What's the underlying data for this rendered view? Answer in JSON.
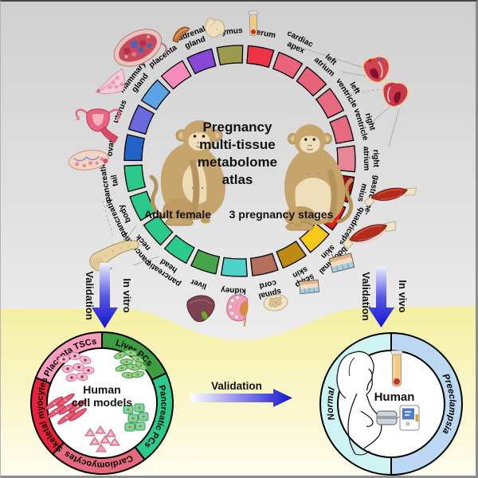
{
  "figure": {
    "atlas": {
      "title_lines": [
        "Pregnancy",
        "multi-tissue",
        "metabolome",
        "atlas"
      ],
      "left_caption": "Adult female",
      "right_caption": "3 pregnancy stages",
      "ring_segments": [
        {
          "label_lines": [
            "thymus"
          ],
          "color": "#9c9a4c",
          "icon": "thymus-icon"
        },
        {
          "label_lines": [
            "serum"
          ],
          "color": "#ee3347",
          "icon": "serum-tube-icon"
        },
        {
          "label_lines": [
            "cardiac",
            "apex"
          ],
          "color": "#e7647a",
          "icon": "heart-icon"
        },
        {
          "label_lines": [
            "left",
            "atrium"
          ],
          "color": "#e7647a",
          "icon": "heart-icon"
        },
        {
          "label_lines": [
            "left",
            "ventricle"
          ],
          "color": "#e76b80",
          "icon": "heart-icon"
        },
        {
          "label_lines": [
            "right",
            "ventricle"
          ],
          "color": "#e76b80",
          "icon": "heart-icon"
        },
        {
          "label_lines": [
            "right",
            "atrium"
          ],
          "color": "#e98598",
          "icon": "heart-icon"
        },
        {
          "label_lines": [
            "gastrocne-",
            "mius"
          ],
          "color": "#a30d12",
          "icon": "gastrocnemius-icon"
        },
        {
          "label_lines": [
            "quadriceps"
          ],
          "color": "#e51a1a",
          "icon": "quadriceps-icon"
        },
        {
          "label_lines": [
            "abdominal",
            "skin"
          ],
          "color": "#f6c81a",
          "icon": "abdominal-skin-icon"
        },
        {
          "label_lines": [
            "scalp",
            "skin"
          ],
          "color": "#bf8a10",
          "icon": "scalp-skin-icon"
        },
        {
          "label_lines": [
            "spinal",
            "cord"
          ],
          "color": "#b4705c",
          "icon": "spinal-cord-icon"
        },
        {
          "label_lines": [
            "kidney"
          ],
          "color": "#4fd2ca",
          "icon": "kidney-icon"
        },
        {
          "label_lines": [
            "liver"
          ],
          "color": "#48a448",
          "icon": "liver-icon"
        },
        {
          "label_lines": [
            "pancreatic",
            "head"
          ],
          "color": "#2bc98c",
          "icon": "pancreas-icon"
        },
        {
          "label_lines": [
            "pancreatic",
            "neck"
          ],
          "color": "#2bc98c",
          "icon": "pancreas-icon"
        },
        {
          "label_lines": [
            "pancreatic",
            "body"
          ],
          "color": "#2bc98c",
          "icon": "pancreas-icon"
        },
        {
          "label_lines": [
            "pancreatic",
            "tail"
          ],
          "color": "#2bc98c",
          "icon": "pancreas-icon"
        },
        {
          "label_lines": [
            "ovary"
          ],
          "color": "#2265c8",
          "icon": "ovary-icon"
        },
        {
          "label_lines": [
            "uterus"
          ],
          "color": "#6b6add",
          "icon": "uterus-icon"
        },
        {
          "label_lines": [
            "mammary",
            "gland"
          ],
          "color": "#5ba3e6",
          "icon": "mammary-gland-icon"
        },
        {
          "label_lines": [
            "placenta"
          ],
          "color": "#f78bbb",
          "icon": "placenta-icon"
        },
        {
          "label_lines": [
            "adrenal",
            "gland"
          ],
          "color": "#8a46d4",
          "icon": "adrenal-gland-icon"
        }
      ]
    },
    "invitro_arrow": {
      "validation_label": "Validation",
      "scope_label": "In vitro"
    },
    "invivo_arrow": {
      "validation_label": "Validation",
      "scope_label": "In vivo"
    },
    "center_arrow": {
      "label": "Validation"
    },
    "cell_models_circle": {
      "center_lines": [
        "Human",
        "cell models"
      ],
      "segments": [
        {
          "label": "Liver PCs",
          "color": "#3d9e41",
          "start": 0,
          "end": 65
        },
        {
          "label": "Pancreatic PCs",
          "color": "#2bc98c",
          "start": 65,
          "end": 143
        },
        {
          "label": "Cardiomyocytes",
          "color": "#e7697e",
          "start": 143,
          "end": 224
        },
        {
          "label": "Skeletal myocytes",
          "color": "#e82339",
          "start": 224,
          "end": 291
        },
        {
          "label": "Placenta TSCs",
          "color": "#fa9dbd",
          "start": 291,
          "end": 360
        }
      ]
    },
    "human_circle": {
      "center_label": "Human",
      "segments": [
        {
          "label": "Preeclampsia",
          "color": "#bdd8f2",
          "start": 0,
          "end": 180
        },
        {
          "label": "Normal",
          "color": "#cdf3f3",
          "start": 180,
          "end": 360
        }
      ]
    },
    "colors": {
      "arrow_blue": "#1414d0",
      "background_yellow": "#f4efa0",
      "background_gray": "#d0d0d0"
    }
  }
}
